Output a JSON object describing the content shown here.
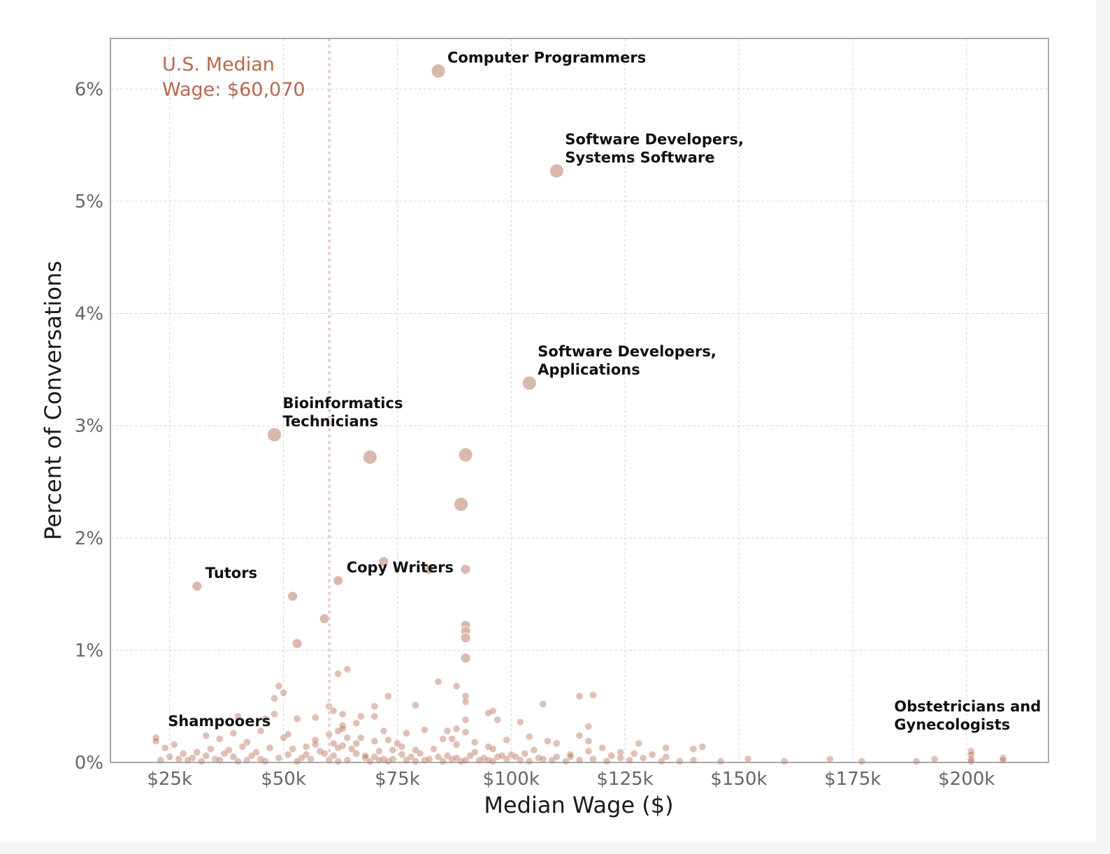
{
  "chart_data": {
    "type": "scatter",
    "title": "",
    "xlabel": "Median Wage ($)",
    "ylabel": "Percent of Conversations",
    "xlim": [
      12000,
      218000
    ],
    "ylim": [
      0,
      6.45
    ],
    "x_ticks": [
      {
        "value": 25000,
        "label": "$25k"
      },
      {
        "value": 50000,
        "label": "$50k"
      },
      {
        "value": 75000,
        "label": "$75k"
      },
      {
        "value": 100000,
        "label": "$100k"
      },
      {
        "value": 125000,
        "label": "$125k"
      },
      {
        "value": 150000,
        "label": "$150k"
      },
      {
        "value": 175000,
        "label": "$175k"
      },
      {
        "value": 200000,
        "label": "$200k"
      }
    ],
    "y_ticks": [
      {
        "value": 0,
        "label": "0%"
      },
      {
        "value": 1,
        "label": "1%"
      },
      {
        "value": 2,
        "label": "2%"
      },
      {
        "value": 3,
        "label": "3%"
      },
      {
        "value": 4,
        "label": "4%"
      },
      {
        "value": 5,
        "label": "5%"
      },
      {
        "value": 6,
        "label": "6%"
      }
    ],
    "grid": true,
    "colors": {
      "point": "#b5694e",
      "median_line": "#e8cfc7",
      "median_text": "#b5694e"
    },
    "reference_line": {
      "x": 60070,
      "label_line1": "U.S. Median",
      "label_line2": "Wage: $60,070"
    },
    "annotations": [
      {
        "lines": [
          "Computer Programmers"
        ],
        "x": 84000,
        "y": 6.16,
        "pos": "right"
      },
      {
        "lines": [
          "Software Developers,",
          "Systems Software"
        ],
        "x": 110000,
        "y": 5.27,
        "pos": "above-right"
      },
      {
        "lines": [
          "Software Developers,",
          "Applications"
        ],
        "x": 104000,
        "y": 3.38,
        "pos": "above-right"
      },
      {
        "lines": [
          "Bioinformatics",
          "Technicians"
        ],
        "x": 48000,
        "y": 2.92,
        "pos": "above-right"
      },
      {
        "lines": [
          "Tutors"
        ],
        "x": 31000,
        "y": 1.57,
        "pos": "above-right"
      },
      {
        "lines": [
          "Copy Writers"
        ],
        "x": 62000,
        "y": 1.62,
        "pos": "above-right"
      },
      {
        "lines": [
          "Shampooers"
        ],
        "x": 24000,
        "y": 0.2,
        "pos": "above"
      },
      {
        "lines": [
          "Obstetricians and",
          "Gynecologists"
        ],
        "x": 201000,
        "y": 0.08,
        "pos": "above-left"
      }
    ],
    "points": [
      [
        84000,
        6.16,
        3
      ],
      [
        110000,
        5.27,
        3
      ],
      [
        104000,
        3.38,
        3
      ],
      [
        48000,
        2.92,
        3
      ],
      [
        90000,
        2.74,
        3
      ],
      [
        69000,
        2.72,
        3
      ],
      [
        89000,
        2.3,
        3
      ],
      [
        72000,
        1.79,
        2
      ],
      [
        90000,
        1.72,
        2
      ],
      [
        62000,
        1.62,
        2
      ],
      [
        31000,
        1.57,
        2
      ],
      [
        82000,
        1.72,
        2
      ],
      [
        52000,
        1.48,
        2
      ],
      [
        59000,
        1.28,
        2
      ],
      [
        90000,
        1.22,
        2
      ],
      [
        90000,
        1.17,
        2
      ],
      [
        90000,
        1.11,
        2
      ],
      [
        53000,
        1.06,
        2
      ],
      [
        90000,
        0.93,
        2
      ],
      [
        64000,
        0.83,
        1
      ],
      [
        62000,
        0.79,
        1
      ],
      [
        84000,
        0.72,
        1
      ],
      [
        88000,
        0.68,
        1
      ],
      [
        49000,
        0.68,
        1
      ],
      [
        50000,
        0.62,
        1
      ],
      [
        48000,
        0.57,
        1
      ],
      [
        73000,
        0.59,
        1
      ],
      [
        90000,
        0.59,
        1
      ],
      [
        90000,
        0.54,
        1
      ],
      [
        115000,
        0.59,
        1
      ],
      [
        118000,
        0.6,
        1
      ],
      [
        107000,
        0.52,
        1
      ],
      [
        79000,
        0.51,
        1
      ],
      [
        70000,
        0.5,
        1
      ],
      [
        60000,
        0.5,
        1
      ],
      [
        61000,
        0.46,
        1
      ],
      [
        96000,
        0.46,
        1
      ],
      [
        95000,
        0.44,
        1
      ],
      [
        63000,
        0.43,
        1
      ],
      [
        48000,
        0.43,
        1
      ],
      [
        70000,
        0.41,
        1
      ],
      [
        67000,
        0.41,
        1
      ],
      [
        40000,
        0.41,
        1
      ],
      [
        53000,
        0.39,
        1
      ],
      [
        57000,
        0.4,
        1
      ],
      [
        46000,
        0.39,
        1
      ],
      [
        102000,
        0.36,
        1
      ],
      [
        90000,
        0.38,
        1
      ],
      [
        97000,
        0.38,
        1
      ],
      [
        66000,
        0.35,
        1
      ],
      [
        117000,
        0.32,
        1
      ],
      [
        63000,
        0.33,
        1
      ],
      [
        88000,
        0.3,
        1
      ],
      [
        86000,
        0.28,
        1
      ],
      [
        81000,
        0.29,
        1
      ],
      [
        72000,
        0.28,
        1
      ],
      [
        77000,
        0.26,
        1
      ],
      [
        90000,
        0.27,
        1
      ],
      [
        115000,
        0.24,
        1
      ],
      [
        104000,
        0.23,
        1
      ],
      [
        67000,
        0.22,
        1
      ],
      [
        85000,
        0.21,
        1
      ],
      [
        22000,
        0.22,
        1
      ],
      [
        22000,
        0.19,
        1
      ],
      [
        50000,
        0.22,
        1
      ],
      [
        36000,
        0.21,
        1
      ],
      [
        99000,
        0.2,
        1
      ],
      [
        57000,
        0.2,
        1
      ],
      [
        108000,
        0.19,
        1
      ],
      [
        117000,
        0.19,
        1
      ],
      [
        128000,
        0.17,
        1
      ],
      [
        110000,
        0.17,
        1
      ],
      [
        70000,
        0.19,
        1
      ],
      [
        42000,
        0.18,
        1
      ],
      [
        75000,
        0.17,
        1
      ],
      [
        26000,
        0.16,
        1
      ],
      [
        88000,
        0.16,
        1
      ],
      [
        134000,
        0.13,
        1
      ],
      [
        142000,
        0.14,
        1
      ],
      [
        120000,
        0.13,
        1
      ],
      [
        140000,
        0.12,
        1
      ],
      [
        95000,
        0.14,
        1
      ],
      [
        24000,
        0.13,
        1
      ],
      [
        63000,
        0.15,
        1
      ],
      [
        105000,
        0.11,
        1
      ],
      [
        117000,
        0.1,
        1
      ],
      [
        124000,
        0.09,
        1
      ],
      [
        127000,
        0.08,
        1
      ],
      [
        201000,
        0.1,
        1
      ],
      [
        201000,
        0.07,
        1
      ],
      [
        208000,
        0.04,
        1
      ],
      [
        208000,
        0.02,
        1
      ],
      [
        201000,
        0.03,
        1
      ],
      [
        201000,
        0.01,
        1
      ],
      [
        193000,
        0.03,
        1
      ],
      [
        170000,
        0.03,
        1
      ],
      [
        152000,
        0.03,
        1
      ],
      [
        134000,
        0.05,
        1
      ],
      [
        113000,
        0.05,
        1
      ],
      [
        124000,
        0.04,
        1
      ],
      [
        177000,
        0.01,
        1
      ],
      [
        189000,
        0.01,
        1
      ],
      [
        160000,
        0.01,
        1
      ],
      [
        137000,
        0.01,
        1
      ],
      [
        113000,
        0.07,
        1
      ],
      [
        103000,
        0.08,
        1
      ],
      [
        122000,
        0.06,
        1
      ],
      [
        131000,
        0.07,
        1
      ],
      [
        129000,
        0.04,
        1
      ],
      [
        118000,
        0.03,
        1
      ],
      [
        140000,
        0.02,
        1
      ],
      [
        146000,
        0.01,
        1
      ],
      [
        28000,
        0.08,
        1
      ],
      [
        33000,
        0.06,
        1
      ],
      [
        38000,
        0.11,
        1
      ],
      [
        44000,
        0.09,
        1
      ],
      [
        55000,
        0.07,
        1
      ],
      [
        71000,
        0.1,
        1
      ],
      [
        80000,
        0.08,
        1
      ],
      [
        86000,
        0.06,
        1
      ],
      [
        92000,
        0.09,
        1
      ],
      [
        97000,
        0.05,
        1
      ],
      [
        34000,
        0.12,
        1
      ],
      [
        41000,
        0.14,
        1
      ],
      [
        47000,
        0.13,
        1
      ],
      [
        52000,
        0.12,
        1
      ],
      [
        58000,
        0.1,
        1
      ],
      [
        65000,
        0.12,
        1
      ],
      [
        74000,
        0.11,
        1
      ],
      [
        83000,
        0.12,
        1
      ],
      [
        100000,
        0.07,
        1
      ],
      [
        106000,
        0.04,
        1
      ],
      [
        30000,
        0.04,
        1
      ],
      [
        39000,
        0.05,
        1
      ],
      [
        45000,
        0.03,
        1
      ],
      [
        54000,
        0.04,
        1
      ],
      [
        61000,
        0.06,
        1
      ],
      [
        68000,
        0.04,
        1
      ],
      [
        78000,
        0.05,
        1
      ],
      [
        87000,
        0.03,
        1
      ],
      [
        93000,
        0.02,
        1
      ],
      [
        99000,
        0.03,
        1
      ],
      [
        109000,
        0.02,
        1
      ],
      [
        23000,
        0.02,
        1
      ],
      [
        29000,
        0.02,
        1
      ],
      [
        35000,
        0.03,
        1
      ],
      [
        42000,
        0.02,
        1
      ],
      [
        49000,
        0.04,
        1
      ],
      [
        56000,
        0.03,
        1
      ],
      [
        64000,
        0.02,
        1
      ],
      [
        72000,
        0.03,
        1
      ],
      [
        81000,
        0.02,
        1
      ],
      [
        89000,
        0.01,
        1
      ],
      [
        96000,
        0.01,
        1
      ],
      [
        104000,
        0.01,
        1
      ],
      [
        112000,
        0.01,
        1
      ],
      [
        31000,
        0.09,
        1
      ],
      [
        37000,
        0.08,
        1
      ],
      [
        43000,
        0.06,
        1
      ],
      [
        51000,
        0.07,
        1
      ],
      [
        59000,
        0.08,
        1
      ],
      [
        66000,
        0.08,
        1
      ],
      [
        76000,
        0.07,
        1
      ],
      [
        84000,
        0.05,
        1
      ],
      [
        91000,
        0.06,
        1
      ],
      [
        101000,
        0.05,
        1
      ],
      [
        25000,
        0.05,
        1
      ],
      [
        27000,
        0.03,
        1
      ],
      [
        32000,
        0.01,
        1
      ],
      [
        36000,
        0.02,
        1
      ],
      [
        40000,
        0.01,
        1
      ],
      [
        46000,
        0.01,
        1
      ],
      [
        53000,
        0.01,
        1
      ],
      [
        60000,
        0.02,
        1
      ],
      [
        62000,
        0.01,
        1
      ],
      [
        69000,
        0.01,
        1
      ],
      [
        73000,
        0.01,
        1
      ],
      [
        79000,
        0.01,
        1
      ],
      [
        85000,
        0.01,
        1
      ],
      [
        94000,
        0.04,
        1
      ],
      [
        60000,
        0.25,
        1
      ],
      [
        62000,
        0.28,
        1
      ],
      [
        63000,
        0.3,
        1
      ],
      [
        64000,
        0.22,
        1
      ],
      [
        61000,
        0.17,
        1
      ],
      [
        45000,
        0.28,
        1
      ],
      [
        39000,
        0.26,
        1
      ],
      [
        33000,
        0.24,
        1
      ],
      [
        73000,
        0.2,
        1
      ],
      [
        76000,
        0.14,
        1
      ],
      [
        79000,
        0.11,
        1
      ],
      [
        66000,
        0.17,
        1
      ],
      [
        87000,
        0.21,
        1
      ],
      [
        92000,
        0.18,
        1
      ],
      [
        96000,
        0.12,
        1
      ],
      [
        51000,
        0.25,
        1
      ],
      [
        55000,
        0.14,
        1
      ],
      [
        57000,
        0.16,
        1
      ],
      [
        62000,
        0.13,
        1
      ],
      [
        68000,
        0.06,
        1
      ],
      [
        70000,
        0.05,
        1
      ],
      [
        71000,
        0.02,
        1
      ],
      [
        74000,
        0.03,
        1
      ],
      [
        77000,
        0.02,
        1
      ],
      [
        82000,
        0.03,
        1
      ],
      [
        88000,
        0.04,
        1
      ],
      [
        90000,
        0.02,
        1
      ],
      [
        95000,
        0.02,
        1
      ],
      [
        98000,
        0.06,
        1
      ],
      [
        102000,
        0.02,
        1
      ],
      [
        107000,
        0.03,
        1
      ],
      [
        110000,
        0.05,
        1
      ],
      [
        115000,
        0.02,
        1
      ],
      [
        121000,
        0.01,
        1
      ],
      [
        126000,
        0.02,
        1
      ],
      [
        133000,
        0.01,
        1
      ]
    ]
  }
}
